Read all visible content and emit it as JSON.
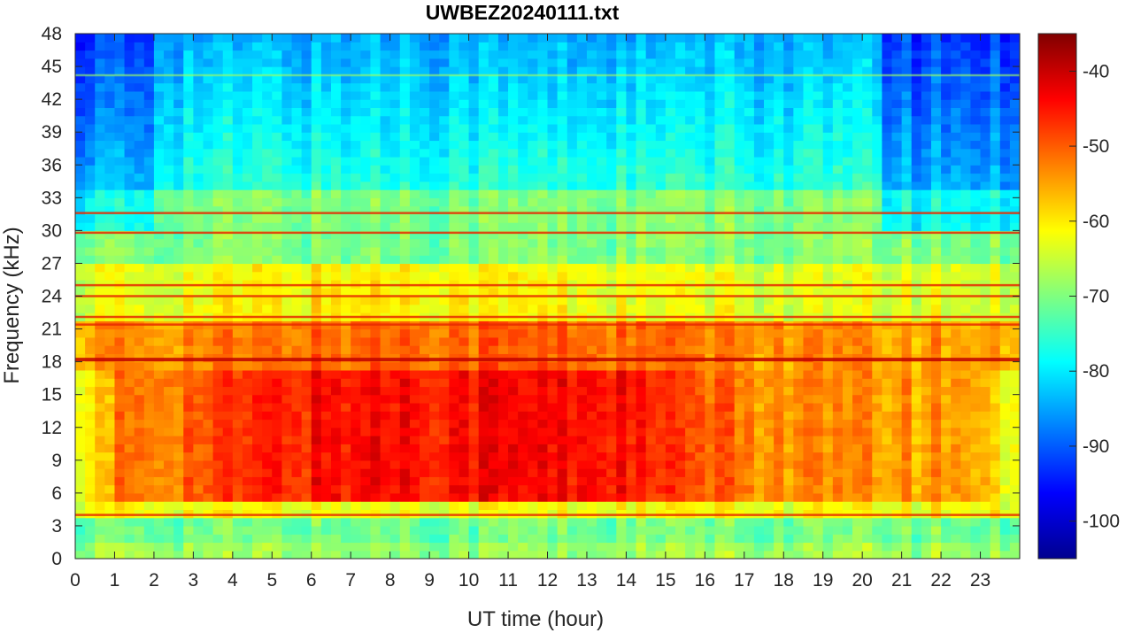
{
  "chart_data": {
    "type": "heatmap",
    "title": "UWBEZ20240111.txt",
    "xlabel": "UT time (hour)",
    "ylabel": "Frequency (kHz)",
    "xlim": [
      0,
      24
    ],
    "ylim": [
      0,
      48
    ],
    "x_ticks": [
      "0",
      "1",
      "2",
      "3",
      "4",
      "5",
      "6",
      "7",
      "8",
      "9",
      "10",
      "11",
      "12",
      "13",
      "14",
      "15",
      "16",
      "17",
      "18",
      "19",
      "20",
      "21",
      "22",
      "23"
    ],
    "y_ticks": [
      "0",
      "3",
      "6",
      "9",
      "12",
      "15",
      "18",
      "21",
      "24",
      "27",
      "30",
      "33",
      "36",
      "39",
      "42",
      "45",
      "48"
    ],
    "colorbar": {
      "colormap": "jet",
      "range": [
        -105,
        -35
      ],
      "ticks": [
        "-40",
        "-50",
        "-60",
        "-70",
        "-80",
        "-90",
        "-100"
      ]
    },
    "narrowband_lines_khz": [
      18.2,
      21.4,
      22.1,
      24.0,
      25.0,
      29.8,
      31.6,
      44.2,
      4.0
    ]
  }
}
